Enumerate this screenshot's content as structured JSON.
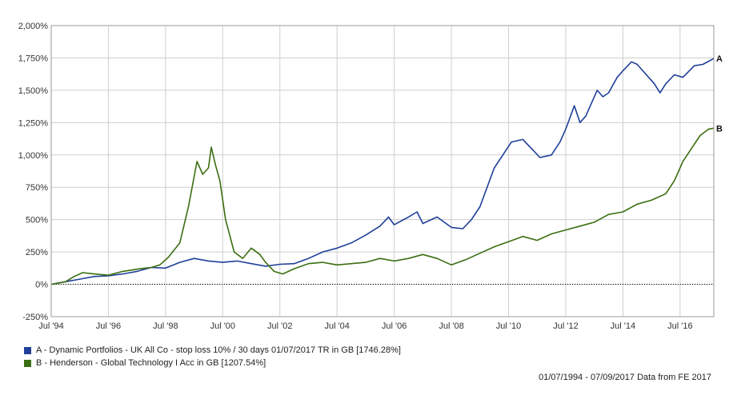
{
  "chart_data": {
    "type": "line",
    "xlabel": "",
    "ylabel": "",
    "x_ticks": [
      "Jul '94",
      "Jul '96",
      "Jul '98",
      "Jul '00",
      "Jul '02",
      "Jul '04",
      "Jul '06",
      "Jul '08",
      "Jul '10",
      "Jul '12",
      "Jul '14",
      "Jul '16"
    ],
    "x_tick_years": [
      1994.5,
      1996.5,
      1998.5,
      2000.5,
      2002.5,
      2004.5,
      2006.5,
      2008.5,
      2010.5,
      2012.5,
      2014.5,
      2016.5
    ],
    "xlim": [
      1994.5,
      2017.68
    ],
    "y_ticks": [
      "-250%",
      "0%",
      "250%",
      "500%",
      "750%",
      "1,000%",
      "1,250%",
      "1,500%",
      "1,750%",
      "2,000%"
    ],
    "y_tick_values": [
      -250,
      0,
      250,
      500,
      750,
      1000,
      1250,
      1500,
      1750,
      2000
    ],
    "ylim": [
      -250,
      2000
    ],
    "grid": true,
    "legend_position": "bottom-left",
    "series": [
      {
        "name": "A - Dynamic Portfolios - UK All Co - stop loss 10% / 30 days 01/07/2017 TR in GB [1746.28%]",
        "end_label": "A",
        "color": "#1f3f99",
        "x": [
          1994.5,
          1995.0,
          1995.5,
          1996.0,
          1996.5,
          1997.0,
          1997.5,
          1998.0,
          1998.5,
          1999.0,
          1999.5,
          2000.0,
          2000.5,
          2001.0,
          2001.5,
          2002.0,
          2002.5,
          2003.0,
          2003.5,
          2004.0,
          2004.5,
          2005.0,
          2005.5,
          2006.0,
          2006.3,
          2006.5,
          2007.0,
          2007.3,
          2007.5,
          2008.0,
          2008.5,
          2008.9,
          2009.2,
          2009.5,
          2009.8,
          2010.0,
          2010.3,
          2010.6,
          2011.0,
          2011.3,
          2011.6,
          2012.0,
          2012.3,
          2012.5,
          2012.8,
          2013.0,
          2013.2,
          2013.4,
          2013.6,
          2013.8,
          2014.0,
          2014.3,
          2014.5,
          2014.8,
          2015.0,
          2015.2,
          2015.4,
          2015.6,
          2015.8,
          2016.0,
          2016.3,
          2016.6,
          2017.0,
          2017.3,
          2017.68
        ],
        "y": [
          0,
          20,
          40,
          60,
          65,
          80,
          100,
          130,
          125,
          170,
          200,
          180,
          170,
          180,
          160,
          140,
          155,
          160,
          200,
          250,
          280,
          320,
          380,
          450,
          520,
          460,
          520,
          560,
          470,
          520,
          440,
          430,
          500,
          600,
          780,
          900,
          1000,
          1100,
          1120,
          1050,
          980,
          1000,
          1100,
          1200,
          1380,
          1250,
          1300,
          1400,
          1500,
          1450,
          1480,
          1600,
          1650,
          1720,
          1700,
          1650,
          1600,
          1550,
          1480,
          1550,
          1620,
          1600,
          1690,
          1700,
          1746
        ]
      },
      {
        "name": "B - Henderson - Global Technology I Acc in GB [1207.54%]",
        "end_label": "B",
        "color": "#3a6e10",
        "x": [
          1994.5,
          1995.0,
          1995.3,
          1995.6,
          1996.0,
          1996.5,
          1997.0,
          1997.3,
          1997.6,
          1998.0,
          1998.3,
          1998.6,
          1999.0,
          1999.3,
          1999.6,
          1999.8,
          2000.0,
          2000.1,
          2000.25,
          2000.4,
          2000.6,
          2000.9,
          2001.2,
          2001.5,
          2001.8,
          2002.0,
          2002.3,
          2002.6,
          2003.0,
          2003.5,
          2004.0,
          2004.5,
          2005.0,
          2005.5,
          2006.0,
          2006.5,
          2007.0,
          2007.5,
          2008.0,
          2008.5,
          2009.0,
          2009.5,
          2010.0,
          2010.5,
          2011.0,
          2011.5,
          2012.0,
          2012.5,
          2013.0,
          2013.5,
          2014.0,
          2014.5,
          2015.0,
          2015.5,
          2016.0,
          2016.3,
          2016.6,
          2016.9,
          2017.2,
          2017.5,
          2017.68
        ],
        "y": [
          0,
          20,
          60,
          90,
          80,
          70,
          100,
          110,
          120,
          130,
          150,
          210,
          320,
          600,
          950,
          850,
          900,
          1060,
          920,
          800,
          500,
          250,
          200,
          280,
          230,
          170,
          100,
          80,
          120,
          160,
          170,
          150,
          160,
          170,
          200,
          180,
          200,
          230,
          200,
          150,
          190,
          240,
          290,
          330,
          370,
          340,
          390,
          420,
          450,
          480,
          540,
          560,
          620,
          650,
          700,
          800,
          950,
          1050,
          1150,
          1200,
          1207
        ]
      }
    ]
  },
  "footer": {
    "text": "01/07/1994 - 07/09/2017 Data from FE 2017"
  }
}
